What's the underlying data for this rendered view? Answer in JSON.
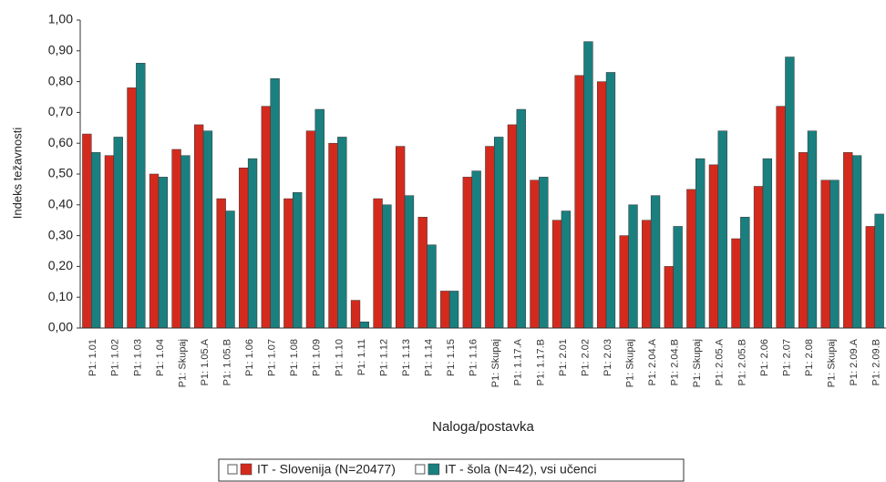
{
  "chart_data": {
    "type": "bar",
    "y_label": "Indeks težavnosti",
    "x_label": "Naloga/postavka",
    "categories": [
      "P1: 1.01",
      "P1: 1.02",
      "P1: 1.03",
      "P1: 1.04",
      "P1: Skupaj",
      "P1: 1.05.A",
      "P1: 1.05.B",
      "P1: 1.06",
      "P1: 1.07",
      "P1: 1.08",
      "P1: 1.09",
      "P1: 1.10",
      "P1: 1.11",
      "P1: 1.12",
      "P1: 1.13",
      "P1: 1.14",
      "P1: 1.15",
      "P1: 1.16",
      "P1: Skupaj",
      "P1: 1.17.A",
      "P1: 1.17.B",
      "P1: 2.01",
      "P1: 2.02",
      "P1: 2.03",
      "P1: Skupaj",
      "P1: 2.04.A",
      "P1: 2.04.B",
      "P1: Skupaj",
      "P1: 2.05.A",
      "P1: 2.05.B",
      "P1: 2.06",
      "P1: 2.07",
      "P1: 2.08",
      "P1: Skupaj",
      "P1: 2.09.A",
      "P1: 2.09.B"
    ],
    "series": [
      {
        "name": "IT - Slovenija (N=20477)",
        "color": "#d42a1e",
        "values": [
          0.63,
          0.56,
          0.78,
          0.5,
          0.58,
          0.66,
          0.42,
          0.52,
          0.72,
          0.42,
          0.64,
          0.6,
          0.09,
          0.42,
          0.59,
          0.36,
          0.12,
          0.49,
          0.59,
          0.66,
          0.48,
          0.35,
          0.82,
          0.8,
          0.3,
          0.35,
          0.2,
          0.45,
          0.53,
          0.29,
          0.46,
          0.72,
          0.57,
          0.48,
          0.57,
          0.33
        ]
      },
      {
        "name": "IT - šola (N=42), vsi učenci",
        "color": "#1a7f7f",
        "values": [
          0.57,
          0.62,
          0.86,
          0.49,
          0.56,
          0.64,
          0.38,
          0.55,
          0.81,
          0.44,
          0.71,
          0.62,
          0.02,
          0.4,
          0.43,
          0.27,
          0.12,
          0.51,
          0.62,
          0.71,
          0.49,
          0.38,
          0.93,
          0.83,
          0.4,
          0.43,
          0.33,
          0.55,
          0.64,
          0.36,
          0.55,
          0.88,
          0.64,
          0.48,
          0.56,
          0.37
        ]
      }
    ],
    "ylim": [
      0,
      1
    ],
    "yticks": [
      {
        "value": 0,
        "label": "0,00"
      },
      {
        "value": 0.1,
        "label": "0,10"
      },
      {
        "value": 0.2,
        "label": "0,20"
      },
      {
        "value": 0.3,
        "label": "0,30"
      },
      {
        "value": 0.4,
        "label": "0,40"
      },
      {
        "value": 0.5,
        "label": "0,50"
      },
      {
        "value": 0.6,
        "label": "0,60"
      },
      {
        "value": 0.7,
        "label": "0,70"
      },
      {
        "value": 0.8,
        "label": "0,80"
      },
      {
        "value": 0.9,
        "label": "0,90"
      },
      {
        "value": 1,
        "label": "1,00"
      }
    ]
  }
}
